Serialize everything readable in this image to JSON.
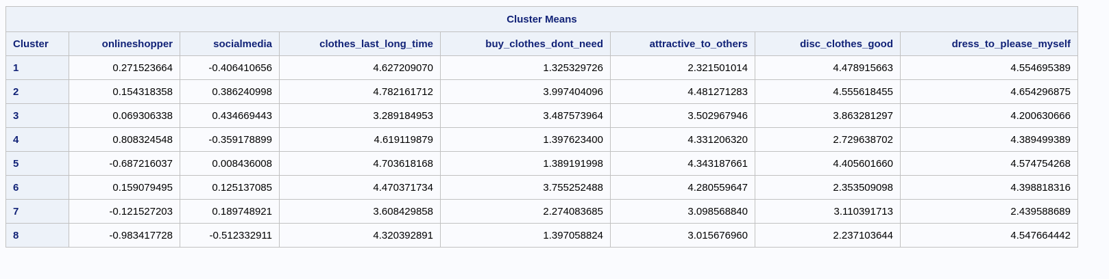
{
  "table": {
    "title": "Cluster Means",
    "headers": [
      "Cluster",
      "onlineshopper",
      "socialmedia",
      "clothes_last_long_time",
      "buy_clothes_dont_need",
      "attractive_to_others",
      "disc_clothes_good",
      "dress_to_please_myself"
    ],
    "rows": [
      [
        "1",
        "0.271523664",
        "-0.406410656",
        "4.627209070",
        "1.325329726",
        "2.321501014",
        "4.478915663",
        "4.554695389"
      ],
      [
        "2",
        "0.154318358",
        "0.386240998",
        "4.782161712",
        "3.997404096",
        "4.481271283",
        "4.555618455",
        "4.654296875"
      ],
      [
        "3",
        "0.069306338",
        "0.434669443",
        "3.289184953",
        "3.487573964",
        "3.502967946",
        "3.863281297",
        "4.200630666"
      ],
      [
        "4",
        "0.808324548",
        "-0.359178899",
        "4.619119879",
        "1.397623400",
        "4.331206320",
        "2.729638702",
        "4.389499389"
      ],
      [
        "5",
        "-0.687216037",
        "0.008436008",
        "4.703618168",
        "1.389191998",
        "4.343187661",
        "4.405601660",
        "4.574754268"
      ],
      [
        "6",
        "0.159079495",
        "0.125137085",
        "4.470371734",
        "3.755252488",
        "4.280559647",
        "2.353509098",
        "4.398818316"
      ],
      [
        "7",
        "-0.121527203",
        "0.189748921",
        "3.608429858",
        "2.274083685",
        "3.098568840",
        "3.110391713",
        "2.439588689"
      ],
      [
        "8",
        "-0.983417728",
        "-0.512332911",
        "4.320392891",
        "1.397058824",
        "3.015676960",
        "2.237103644",
        "4.547664442"
      ]
    ]
  }
}
